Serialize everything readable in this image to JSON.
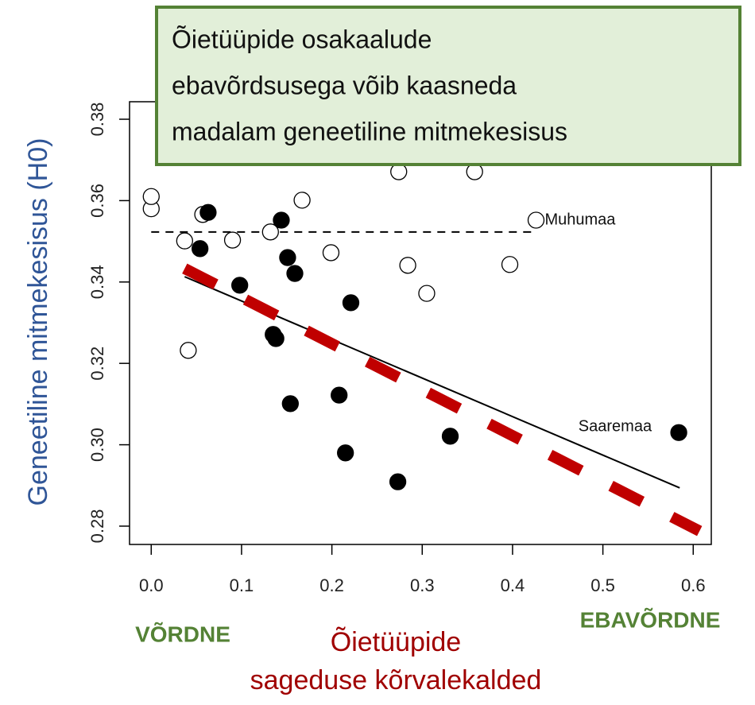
{
  "chart_data": {
    "type": "scatter",
    "ylabel": "Geneetiline mitmekesisus (H0)",
    "xlabel": [
      "Õietüüpide",
      "sageduse kõrvalekalded"
    ],
    "x_end_labels": [
      "VÕRDNE",
      "EBAVÕRDNE"
    ],
    "annotation": [
      "Õietüüpide osakaalude",
      "ebavõrdsusega võib kaasneda",
      "madalam geneetiline mitmekesisus"
    ],
    "xlim": [
      -0.024,
      0.62
    ],
    "ylim": [
      0.2755,
      0.3843
    ],
    "xticks": [
      {
        "value": 0,
        "label": "0.0"
      },
      0.1,
      0.2,
      0.3,
      0.4,
      0.5,
      0.6
    ],
    "yticks": [
      0.28,
      {
        "value": 0.3,
        "label": "0.30"
      },
      0.32,
      0.34,
      0.36,
      0.38
    ],
    "series": [
      {
        "marker": "open",
        "color": "#000000",
        "x": [
          0.0,
          0.0,
          0.057,
          0.037,
          0.09,
          0.132,
          0.167,
          0.199,
          0.274,
          0.284,
          0.305,
          0.358,
          0.397,
          0.426,
          0.041
        ],
        "values": [
          0.358,
          0.361,
          0.3566,
          0.3501,
          0.3503,
          0.3523,
          0.3601,
          0.3472,
          0.3671,
          0.3441,
          0.3372,
          0.3671,
          0.3443,
          0.3552,
          0.3232
        ],
        "labels": [
          null,
          null,
          null,
          null,
          null,
          null,
          null,
          null,
          null,
          null,
          null,
          null,
          null,
          "Muhumaa",
          null
        ]
      },
      {
        "marker": "filled",
        "color": "#000000",
        "x": [
          0.054,
          0.063,
          0.098,
          0.144,
          0.151,
          0.159,
          0.135,
          0.138,
          0.154,
          0.208,
          0.221,
          0.215,
          0.273,
          0.331,
          0.584
        ],
        "values": [
          0.3482,
          0.3571,
          0.3392,
          0.3552,
          0.346,
          0.3421,
          0.3271,
          0.3261,
          0.3101,
          0.3122,
          0.3349,
          0.298,
          0.2909,
          0.3021,
          0.303
        ],
        "labels": [
          null,
          null,
          null,
          null,
          null,
          null,
          null,
          null,
          null,
          null,
          null,
          null,
          null,
          null,
          "Saaremaa"
        ]
      }
    ],
    "lines": [
      {
        "x": [
          0.0,
          0.424
        ],
        "values": [
          0.3523,
          0.3523
        ],
        "color": "#000000",
        "dash": "dashed",
        "width": 2
      },
      {
        "x": [
          0.037,
          0.585
        ],
        "values": [
          0.3413,
          0.2894
        ],
        "color": "#000000",
        "dash": "solid",
        "width": 2
      },
      {
        "x": [
          0.037,
          0.607
        ],
        "values": [
          0.3433,
          0.2788
        ],
        "color": "#c00000",
        "dash": "long-dashed",
        "width": 14
      }
    ]
  }
}
